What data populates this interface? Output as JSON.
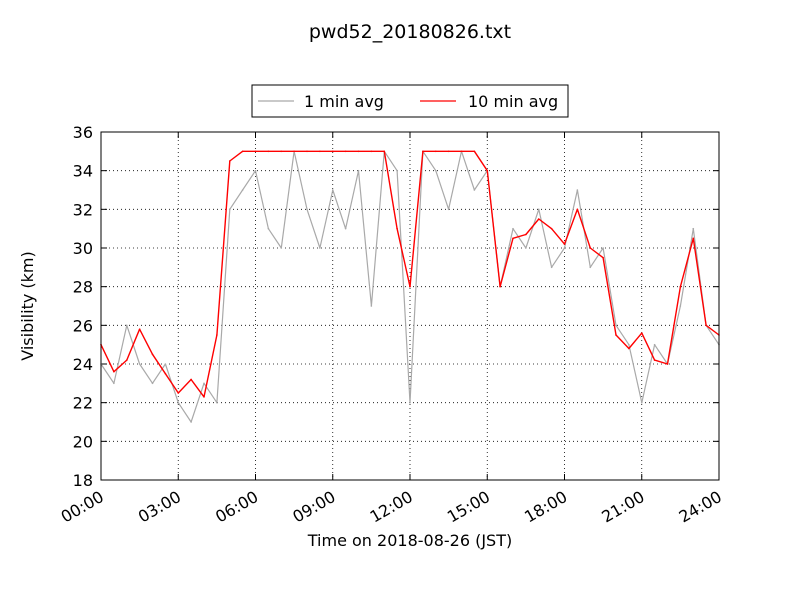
{
  "chart_data": {
    "type": "line",
    "title": "pwd52_20180826.txt",
    "xlabel": "Time on 2018-08-26 (JST)",
    "ylabel": "Visibility (km)",
    "xlim": [
      "00:00",
      "24:00"
    ],
    "ylim": [
      18,
      36
    ],
    "x_ticks": [
      "00:00",
      "03:00",
      "06:00",
      "09:00",
      "12:00",
      "15:00",
      "18:00",
      "21:00",
      "24:00"
    ],
    "y_ticks": [
      "18",
      "20",
      "22",
      "24",
      "26",
      "28",
      "30",
      "32",
      "34",
      "36"
    ],
    "grid": true,
    "legend_position": "top-center",
    "series": [
      {
        "name": "1 min avg",
        "color": "#a9a9a9",
        "x": [
          "00:00",
          "00:30",
          "01:00",
          "01:30",
          "02:00",
          "02:30",
          "03:00",
          "03:30",
          "04:00",
          "04:30",
          "05:00",
          "05:30",
          "06:00",
          "06:30",
          "07:00",
          "07:30",
          "08:00",
          "08:30",
          "09:00",
          "09:30",
          "10:00",
          "10:30",
          "11:00",
          "11:30",
          "12:00",
          "12:30",
          "13:00",
          "13:30",
          "14:00",
          "14:30",
          "15:00",
          "15:30",
          "16:00",
          "16:30",
          "17:00",
          "17:30",
          "18:00",
          "18:30",
          "19:00",
          "19:30",
          "20:00",
          "20:30",
          "21:00",
          "21:30",
          "22:00",
          "22:30",
          "23:00",
          "23:30",
          "24:00"
        ],
        "values": [
          24,
          23,
          26,
          24,
          23,
          24,
          22,
          21,
          23,
          22,
          32,
          33,
          34,
          31,
          30,
          35,
          32,
          30,
          33,
          31,
          34,
          27,
          35,
          34,
          22,
          35,
          34,
          32,
          35,
          33,
          34,
          28,
          31,
          30,
          32,
          29,
          30,
          33,
          29,
          30,
          26,
          25,
          22,
          25,
          24,
          27,
          31,
          26,
          25
        ]
      },
      {
        "name": "10 min avg",
        "color": "#ff0000",
        "x": [
          "00:00",
          "00:30",
          "01:00",
          "01:30",
          "02:00",
          "02:30",
          "03:00",
          "03:30",
          "04:00",
          "04:30",
          "05:00",
          "05:30",
          "06:00",
          "06:30",
          "07:00",
          "07:30",
          "08:00",
          "08:30",
          "09:00",
          "09:30",
          "10:00",
          "10:30",
          "11:00",
          "11:30",
          "12:00",
          "12:30",
          "13:00",
          "13:30",
          "14:00",
          "14:30",
          "15:00",
          "15:30",
          "16:00",
          "16:30",
          "17:00",
          "17:30",
          "18:00",
          "18:30",
          "19:00",
          "19:30",
          "20:00",
          "20:30",
          "21:00",
          "21:30",
          "22:00",
          "22:30",
          "23:00",
          "23:30",
          "24:00"
        ],
        "values": [
          25,
          23.6,
          24.2,
          25.8,
          24.5,
          23.5,
          22.5,
          23.2,
          22.3,
          25.5,
          34.5,
          35,
          35,
          35,
          35,
          35,
          35,
          35,
          35,
          35,
          35,
          35,
          35,
          31,
          28,
          35,
          35,
          35,
          35,
          35,
          34,
          28,
          30.5,
          30.7,
          31.5,
          31,
          30.2,
          32,
          30,
          29.5,
          25.5,
          24.8,
          25.6,
          24.2,
          24,
          28,
          30.5,
          26,
          25.5
        ]
      }
    ]
  }
}
